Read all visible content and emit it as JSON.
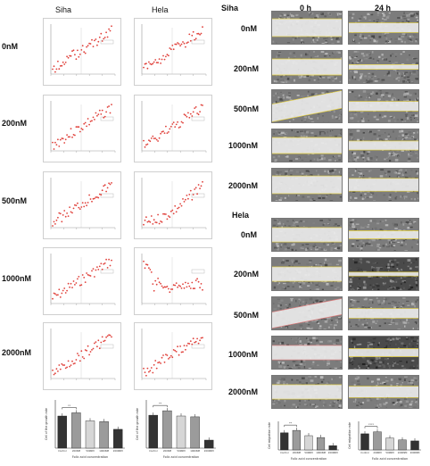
{
  "left_panel": {
    "col_headers": [
      "Siha",
      "Hela"
    ],
    "row_labels": [
      "0nM",
      "200nM",
      "500nM",
      "1000nM",
      "2000nM"
    ]
  },
  "right_panel": {
    "section_siha": "Siha",
    "section_hela": "Hela",
    "time_headers": [
      "0 h",
      "24 h"
    ],
    "siha_rows": [
      "0nM",
      "200nM",
      "500nM",
      "1000nM",
      "2000nM"
    ],
    "hela_rows": [
      "0nM",
      "200nM",
      "500nM",
      "1000nM",
      "2000nM"
    ]
  },
  "colors": {
    "data_point": "#e0403a",
    "fit_line": "#a0a0a0",
    "gap_line": "#e8d23a",
    "bar_dark": "#333333",
    "bar_mid": "#9b9b9b",
    "bar_light": "#d6d6d6"
  },
  "chart_data": [
    {
      "type": "bar",
      "panel": "siha-bar-chart",
      "categories": [
        "Control",
        "200NM",
        "500NM",
        "1000NM",
        "2000NM"
      ],
      "values": [
        0.8,
        0.88,
        0.68,
        0.66,
        0.47
      ],
      "ylabel": "Cell of the growth rate",
      "xlabel": "Folic acid concentration",
      "ylim": [
        0,
        1.2
      ],
      "significance": [
        "**"
      ]
    },
    {
      "type": "bar",
      "panel": "hela-bar-chart",
      "categories": [
        "Control",
        "200NM",
        "500NM",
        "1000NM",
        "2000NM"
      ],
      "values": [
        0.82,
        0.93,
        0.8,
        0.78,
        0.2
      ],
      "ylabel": "Cell of the growth rate",
      "xlabel": "Folic acid concentration",
      "ylim": [
        0,
        1.2
      ],
      "significance": [
        "**"
      ]
    },
    {
      "type": "bar",
      "panel": "siha-migration-chart",
      "categories": [
        "Control",
        "200NM",
        "500NM",
        "1000NM",
        "2000NM"
      ],
      "values": [
        0.72,
        0.82,
        0.6,
        0.52,
        0.18
      ],
      "ylabel": "Cell migration rate",
      "xlabel": "Folic acid concentration",
      "ylim": [
        0,
        1.2
      ],
      "significance": [
        "**"
      ]
    },
    {
      "type": "bar",
      "panel": "hela-migration-chart",
      "categories": [
        "Control",
        "200NM",
        "500NM",
        "1000NM",
        "2000NM"
      ],
      "values": [
        0.68,
        0.76,
        0.5,
        0.42,
        0.38
      ],
      "ylabel": "Cell migration rate",
      "xlabel": "Folic acid concentration",
      "ylim": [
        0,
        1.2
      ],
      "significance": [
        "****"
      ]
    }
  ]
}
